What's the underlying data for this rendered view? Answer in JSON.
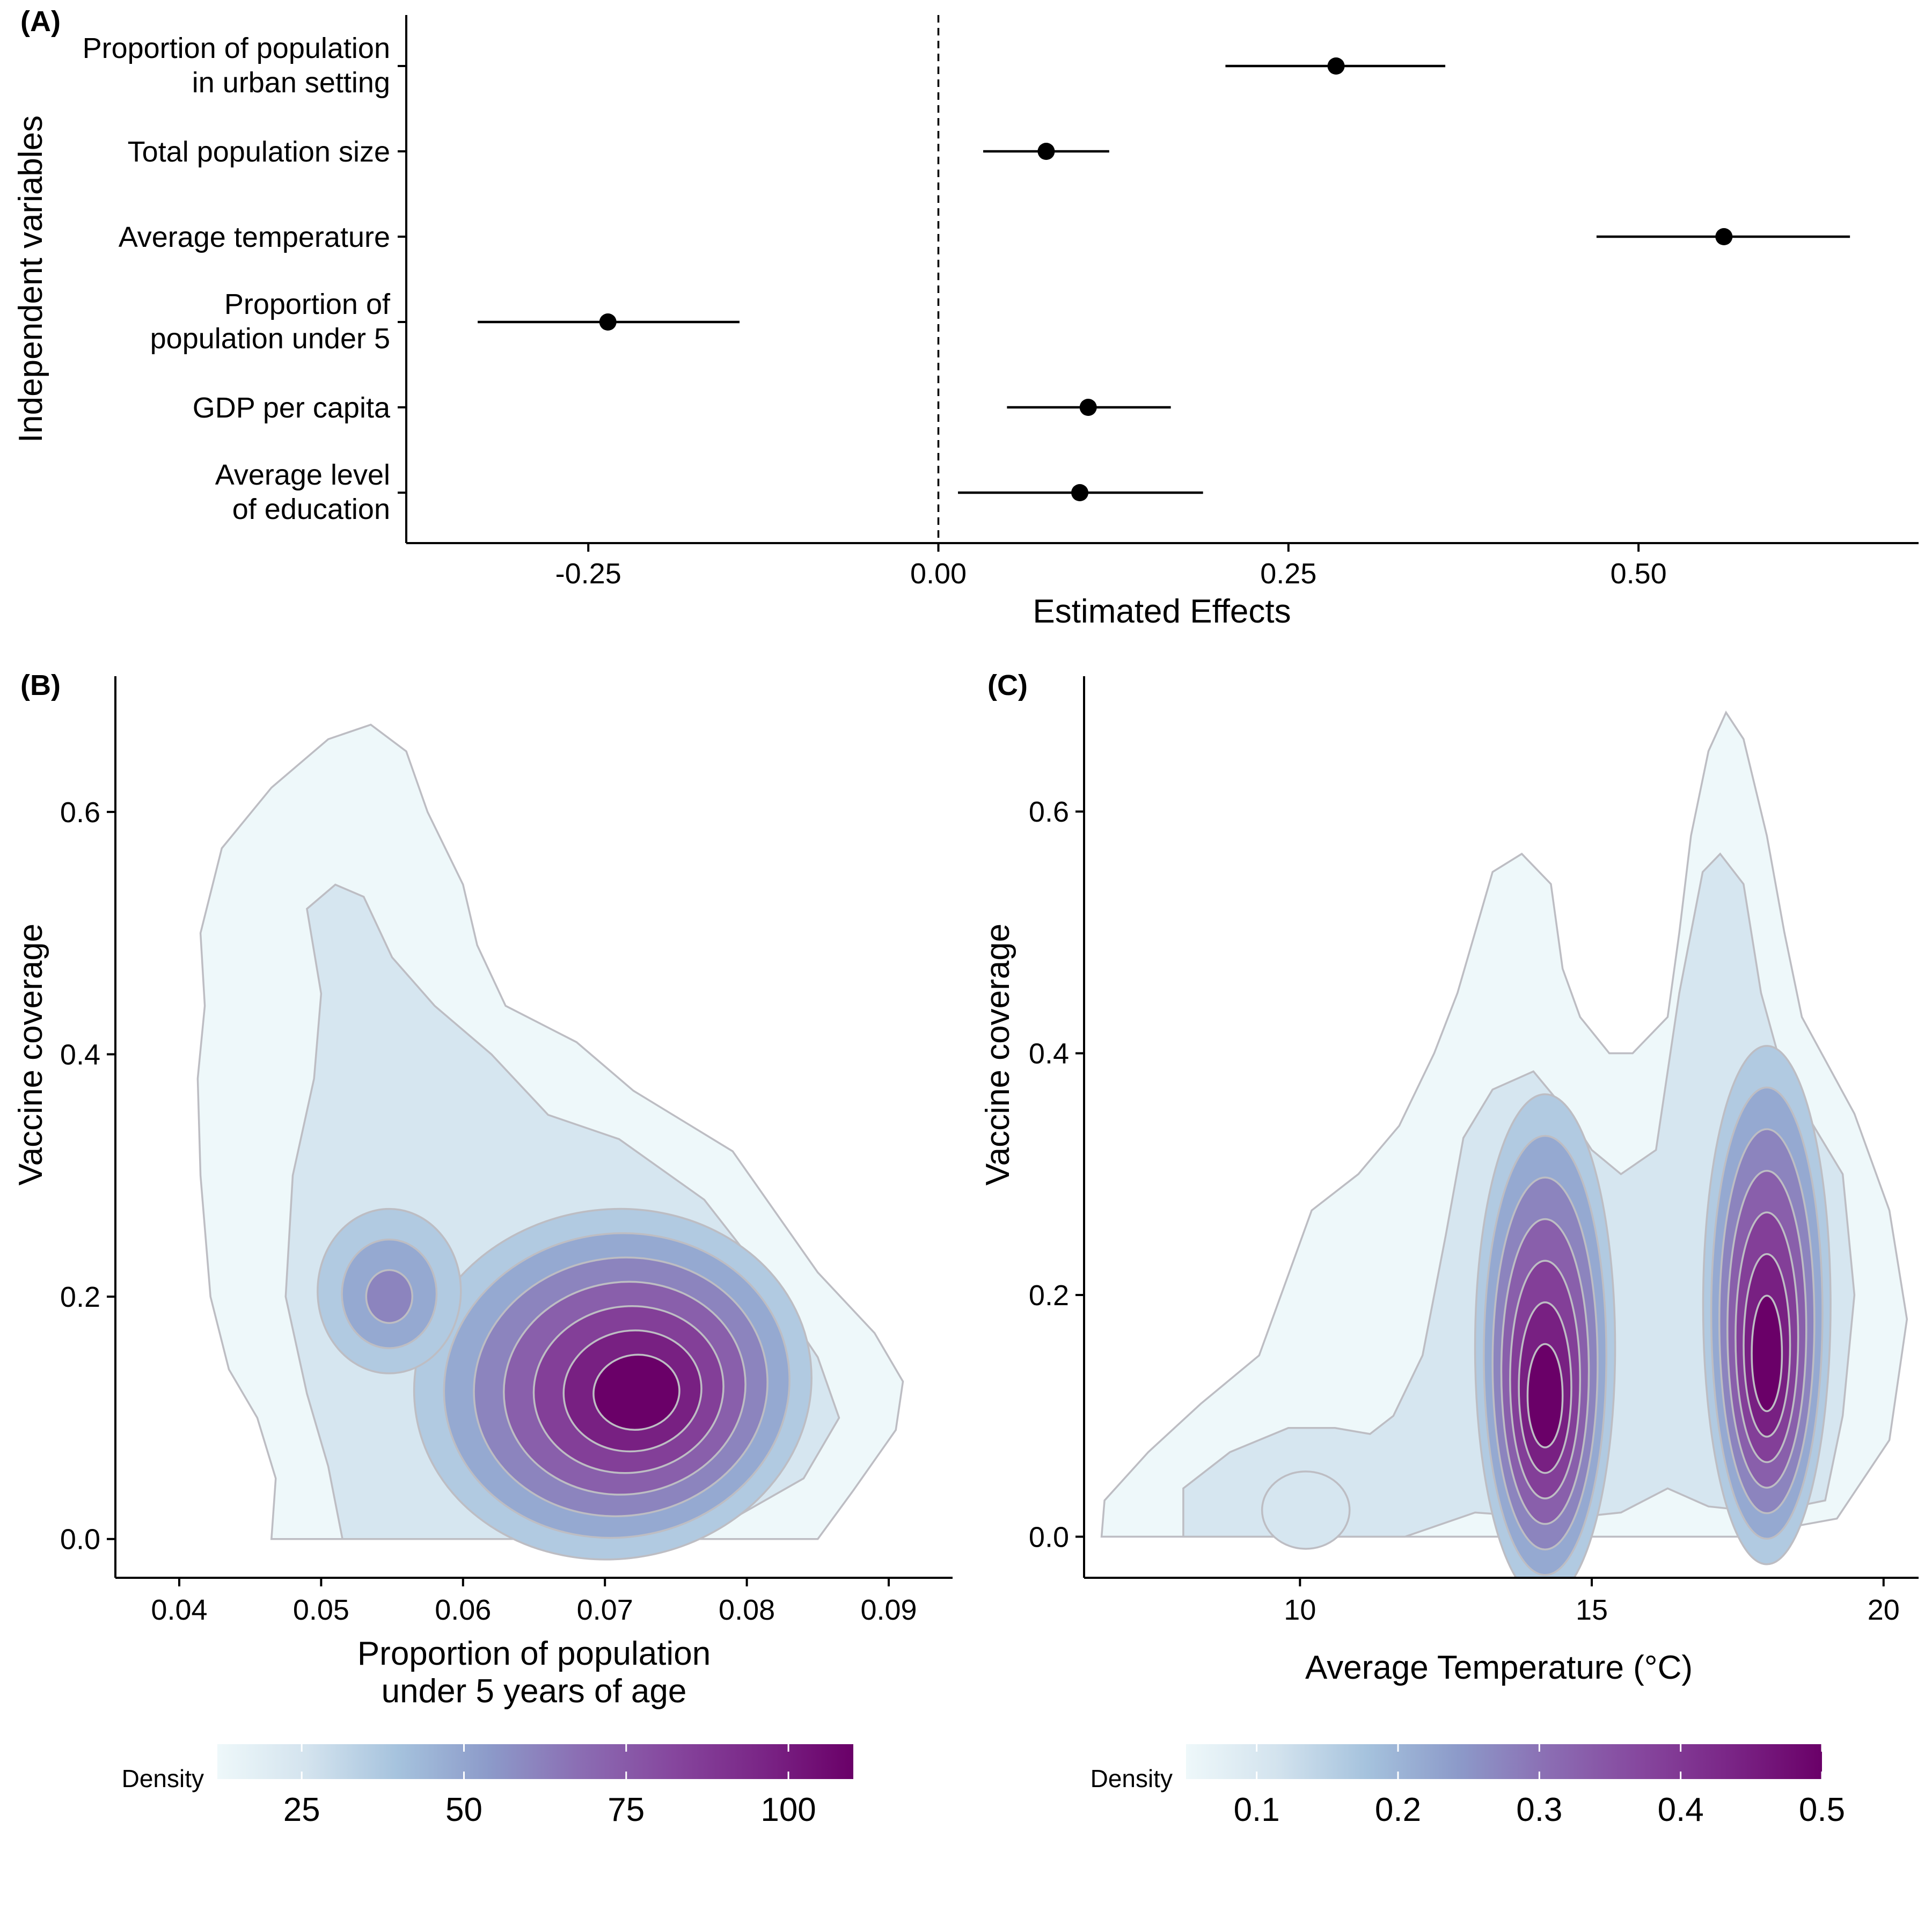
{
  "colors": {
    "density_scale": [
      "#eef8fa",
      "#d3e3ee",
      "#a5c2dd",
      "#8c9ac9",
      "#8b6db3",
      "#86479e",
      "#7a2586",
      "#6a0068"
    ],
    "contour_line": "#bdbdc3",
    "point": "#000000"
  },
  "chart_data": [
    {
      "panel_label": "(A)",
      "type": "scatter",
      "subtype": "coefficient-plot with confidence intervals",
      "xlabel": "Estimated Effects",
      "ylabel": "Independent variables",
      "xlim": [
        -0.38,
        0.7
      ],
      "x_ticks": [
        -0.25,
        0.0,
        0.25,
        0.5
      ],
      "x_tick_labels": [
        "-0.25",
        "0.00",
        "0.25",
        "0.50"
      ],
      "reference_line": 0,
      "grid": false,
      "categories": [
        [
          "Proportion of population",
          "in urban setting"
        ],
        [
          "Total population size"
        ],
        [
          "Average temperature"
        ],
        [
          "Proportion of",
          "population under 5"
        ],
        [
          "GDP per capita"
        ],
        [
          "Average level",
          "of education"
        ]
      ],
      "estimates": [
        0.284,
        0.077,
        0.561,
        -0.236,
        0.107,
        0.101
      ],
      "ci_low": [
        0.205,
        0.032,
        0.47,
        -0.329,
        0.049,
        0.014
      ],
      "ci_high": [
        0.362,
        0.122,
        0.651,
        -0.142,
        0.166,
        0.189
      ]
    },
    {
      "panel_label": "(B)",
      "type": "heatmap",
      "subtype": "2D density contour",
      "xlabel": [
        "Proportion of population",
        "under 5 years of age"
      ],
      "ylabel": "Vaccine coverage",
      "xlim": [
        0.0355,
        0.0945
      ],
      "ylim": [
        -0.032,
        0.712
      ],
      "x_ticks": [
        0.04,
        0.05,
        0.06,
        0.07,
        0.08,
        0.09
      ],
      "x_tick_labels": [
        "0.04",
        "0.05",
        "0.06",
        "0.07",
        "0.08",
        "0.09"
      ],
      "y_ticks": [
        0.0,
        0.2,
        0.4,
        0.6
      ],
      "y_tick_labels": [
        "0.0",
        "0.2",
        "0.4",
        "0.6"
      ],
      "density_peaks": [
        {
          "x": 0.0719,
          "y": 0.13,
          "density": 110
        },
        {
          "x": 0.0528,
          "y": 0.25,
          "density": 50
        }
      ],
      "legend": {
        "title": "Density",
        "position": "bottom",
        "range": [
          12,
          110
        ],
        "ticks": [
          25,
          50,
          75,
          100
        ],
        "tick_labels": [
          "25",
          "50",
          "75",
          "100"
        ]
      }
    },
    {
      "panel_label": "(C)",
      "type": "heatmap",
      "subtype": "2D density contour",
      "xlabel": "Average Temperature (°C)",
      "ylabel": "Vaccine coverage",
      "xlim": [
        6.3,
        20.6
      ],
      "ylim": [
        -0.034,
        0.712
      ],
      "x_ticks": [
        10,
        15,
        20
      ],
      "x_tick_labels": [
        "10",
        "15",
        "20"
      ],
      "y_ticks": [
        0.0,
        0.2,
        0.4,
        0.6
      ],
      "y_tick_labels": [
        "0.0",
        "0.2",
        "0.4",
        "0.6"
      ],
      "density_peaks": [
        {
          "x": 14.2,
          "y": 0.1,
          "density": 0.5
        },
        {
          "x": 18.0,
          "y": 0.14,
          "density": 0.5
        },
        {
          "x": 10.2,
          "y": 0.025,
          "density": 0.2
        }
      ],
      "legend": {
        "title": "Density",
        "position": "bottom",
        "range": [
          0.05,
          0.5
        ],
        "ticks": [
          0.1,
          0.2,
          0.3,
          0.4,
          0.5
        ],
        "tick_labels": [
          "0.1",
          "0.2",
          "0.3",
          "0.4",
          "0.5"
        ]
      }
    }
  ]
}
